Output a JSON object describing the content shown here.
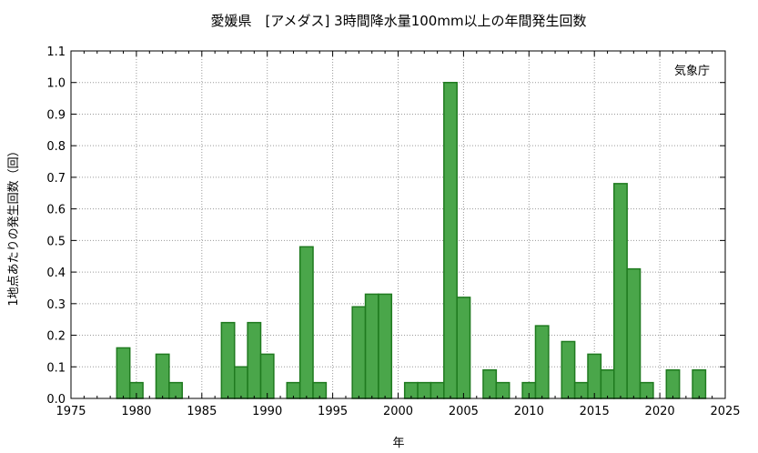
{
  "chart_data": {
    "type": "bar",
    "title": "愛媛県　[アメダス] 3時間降水量100mm以上の年間発生回数",
    "xlabel": "年",
    "ylabel": "1地点あたりの発生回数（回）",
    "credit": "気象庁",
    "xlim": [
      1975,
      2025
    ],
    "ylim": [
      0,
      1.1
    ],
    "xticks": [
      1975,
      1980,
      1985,
      1990,
      1995,
      2000,
      2005,
      2010,
      2015,
      2020,
      2025
    ],
    "yticks": [
      "0.0",
      "0.1",
      "0.2",
      "0.3",
      "0.4",
      "0.5",
      "0.6",
      "0.7",
      "0.8",
      "0.9",
      "1.0",
      "1.1"
    ],
    "grid": true,
    "bar_color": "#4aa64a",
    "bar_edge_color": "#1f7a1f",
    "x": [
      1979,
      1980,
      1982,
      1983,
      1987,
      1988,
      1989,
      1990,
      1992,
      1993,
      1994,
      1997,
      1998,
      1999,
      2001,
      2002,
      2003,
      2004,
      2005,
      2007,
      2008,
      2010,
      2011,
      2013,
      2014,
      2015,
      2016,
      2017,
      2018,
      2019,
      2021,
      2023
    ],
    "values": [
      0.16,
      0.05,
      0.14,
      0.05,
      0.24,
      0.1,
      0.24,
      0.14,
      0.05,
      0.48,
      0.05,
      0.29,
      0.33,
      0.33,
      0.05,
      0.05,
      0.05,
      1.0,
      0.32,
      0.09,
      0.05,
      0.05,
      0.23,
      0.18,
      0.05,
      0.14,
      0.09,
      0.68,
      0.41,
      0.05,
      0.09,
      0.09
    ]
  }
}
